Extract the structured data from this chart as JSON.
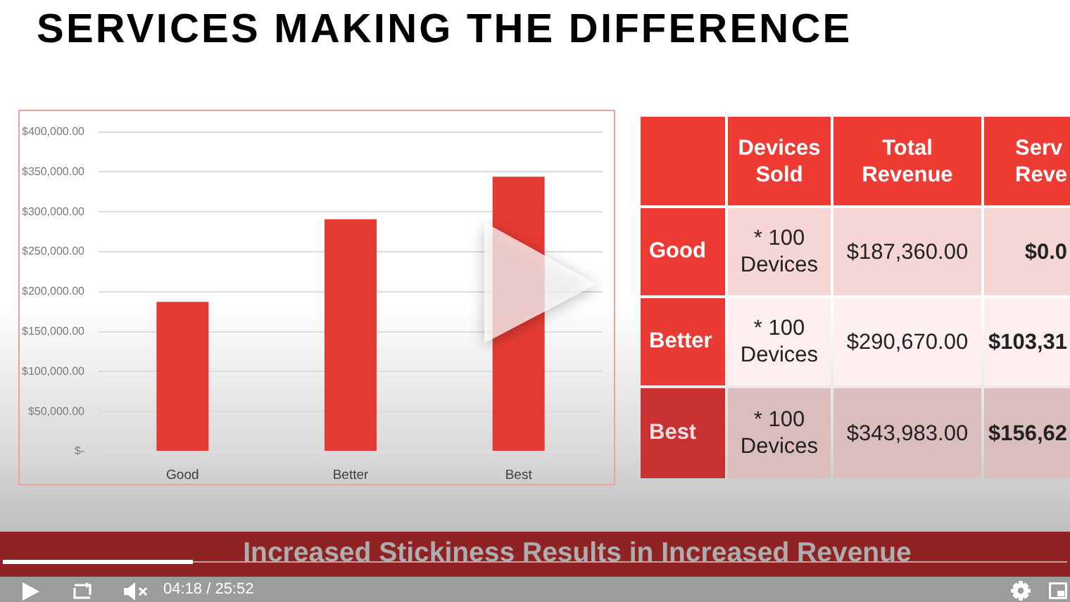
{
  "chart_data": [
    {
      "type": "bar",
      "title": "SERVICES MAKING THE DIFFERENCE",
      "categories": [
        "Good",
        "Better",
        "Best"
      ],
      "values": [
        187360,
        290670,
        343983
      ],
      "color": "#e53a33",
      "ylim": [
        0,
        400000
      ],
      "yticks": [
        {
          "value": 0,
          "label": "$-"
        },
        {
          "value": 50000,
          "label": "$50,000.00"
        },
        {
          "value": 100000,
          "label": "$100,000.00"
        },
        {
          "value": 150000,
          "label": "$150,000.00"
        },
        {
          "value": 200000,
          "label": "$200,000.00"
        },
        {
          "value": 250000,
          "label": "$250,000.00"
        },
        {
          "value": 300000,
          "label": "$300,000.00"
        },
        {
          "value": 350000,
          "label": "$350,000.00"
        },
        {
          "value": 400000,
          "label": "$400,000.00"
        }
      ],
      "grid": "y",
      "annotations": [
        "Increased Stickiness Results in Increased Revenue",
        "04:18 / 25:52"
      ]
    },
    {
      "type": "other",
      "categories": [
        "Devices Sold",
        "Total Revenue",
        "Serv Reve"
      ],
      "y_categories": [
        "Good",
        "Better",
        "Best"
      ],
      "cell_labels": [
        [
          "* 100 Devices",
          "$187,360.00",
          "$0.0"
        ],
        [
          "* 100 Devices",
          "$290,670.00",
          "$103,31"
        ],
        [
          "* 100 Devices",
          "$343,983.00",
          "$156,62"
        ]
      ]
    }
  ]
}
